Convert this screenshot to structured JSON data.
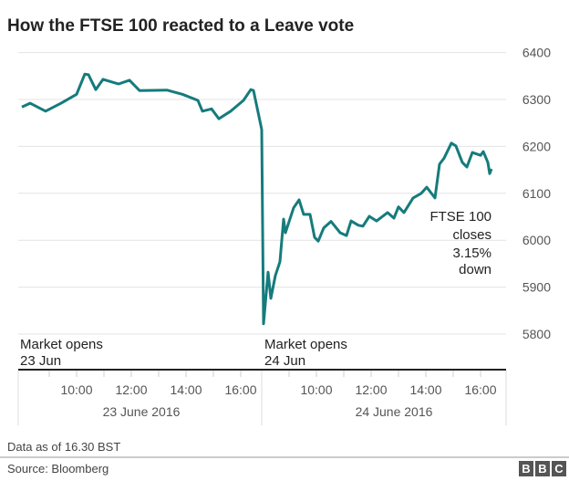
{
  "chart_data": {
    "type": "line",
    "title": "How the FTSE 100 reacted to a Leave vote",
    "ylim": [
      5800,
      6400
    ],
    "yticks": [
      "6400",
      "6300",
      "6200",
      "6100",
      "6000",
      "5900",
      "5800"
    ],
    "grid": true,
    "line_color": "#167b7c",
    "days": [
      {
        "label": "23 June 2016",
        "ticks": [
          "10:00",
          "12:00",
          "14:00",
          "16:00"
        ]
      },
      {
        "label": "24 June 2016",
        "ticks": [
          "10:00",
          "12:00",
          "14:00",
          "16:00"
        ]
      }
    ],
    "annotations": {
      "open1": [
        "Market opens",
        "23 Jun"
      ],
      "open2": [
        "Market opens",
        "24 Jun"
      ],
      "close": [
        "FTSE 100",
        "closes",
        "3.15%",
        "down"
      ]
    },
    "series": [
      {
        "points": [
          [
            "23 08:00",
            6284
          ],
          [
            "23 08:18",
            6292
          ],
          [
            "23 08:52",
            6275
          ],
          [
            "23 09:26",
            6292
          ],
          [
            "23 10:00",
            6311
          ],
          [
            "23 10:18",
            6354
          ],
          [
            "23 10:26",
            6353
          ],
          [
            "23 10:42",
            6321
          ],
          [
            "23 10:58",
            6343
          ],
          [
            "23 11:32",
            6333
          ],
          [
            "23 11:56",
            6341
          ],
          [
            "23 12:18",
            6319
          ],
          [
            "23 13:18",
            6320
          ],
          [
            "23 13:52",
            6311
          ],
          [
            "23 14:26",
            6298
          ],
          [
            "23 14:36",
            6275
          ],
          [
            "23 14:56",
            6280
          ],
          [
            "23 15:12",
            6259
          ],
          [
            "23 15:38",
            6275
          ],
          [
            "23 16:06",
            6298
          ],
          [
            "23 16:22",
            6321
          ],
          [
            "23 16:28",
            6319
          ],
          [
            "24 08:00",
            6236
          ],
          [
            "24 08:04",
            5822
          ],
          [
            "24 08:14",
            5932
          ],
          [
            "24 08:20",
            5876
          ],
          [
            "24 08:30",
            5925
          ],
          [
            "24 08:40",
            5954
          ],
          [
            "24 08:48",
            6045
          ],
          [
            "24 08:52",
            6016
          ],
          [
            "24 09:10",
            6069
          ],
          [
            "24 09:22",
            6086
          ],
          [
            "24 09:32",
            6055
          ],
          [
            "24 09:46",
            6055
          ],
          [
            "24 09:56",
            6006
          ],
          [
            "24 10:04",
            5998
          ],
          [
            "24 10:16",
            6026
          ],
          [
            "24 10:32",
            6040
          ],
          [
            "24 10:52",
            6016
          ],
          [
            "24 11:06",
            6010
          ],
          [
            "24 11:16",
            6041
          ],
          [
            "24 11:32",
            6032
          ],
          [
            "24 11:42",
            6030
          ],
          [
            "24 11:56",
            6051
          ],
          [
            "24 12:12",
            6041
          ],
          [
            "24 12:36",
            6059
          ],
          [
            "24 12:50",
            6047
          ],
          [
            "24 13:00",
            6071
          ],
          [
            "24 13:12",
            6059
          ],
          [
            "24 13:32",
            6090
          ],
          [
            "24 13:50",
            6100
          ],
          [
            "24 14:02",
            6113
          ],
          [
            "24 14:20",
            6090
          ],
          [
            "24 14:30",
            6162
          ],
          [
            "24 14:40",
            6175
          ],
          [
            "24 14:56",
            6207
          ],
          [
            "24 15:06",
            6201
          ],
          [
            "24 15:20",
            6166
          ],
          [
            "24 15:30",
            6156
          ],
          [
            "24 15:42",
            6187
          ],
          [
            "24 16:00",
            6181
          ],
          [
            "24 16:06",
            6189
          ],
          [
            "24 16:16",
            6166
          ],
          [
            "24 16:20",
            6142
          ],
          [
            "24 16:24",
            6152
          ]
        ]
      }
    ]
  },
  "footer": {
    "note": "Data as of 16.30 BST",
    "source": "Source: Bloomberg",
    "logo": [
      "B",
      "B",
      "C"
    ]
  }
}
